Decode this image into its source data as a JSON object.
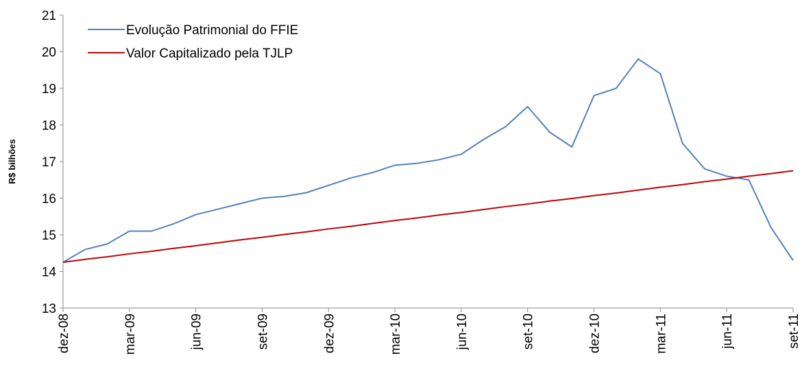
{
  "chart_data": {
    "type": "line",
    "y_label": "R$ bilhões",
    "categories": [
      "dez-08",
      null,
      null,
      "mar-09",
      null,
      null,
      "jun-09",
      null,
      null,
      "set-09",
      null,
      null,
      "dez-09",
      null,
      null,
      "mar-10",
      null,
      null,
      "jun-10",
      null,
      null,
      "set-10",
      null,
      null,
      "dez-10",
      null,
      null,
      "mar-11",
      null,
      null,
      "jun-11",
      null,
      null,
      "set-11"
    ],
    "series": [
      {
        "name": "Evolução Patrimonial do FFIE",
        "color": "#4f81bd",
        "values": [
          14.25,
          14.6,
          14.75,
          15.1,
          15.1,
          15.3,
          15.55,
          15.7,
          15.85,
          16.0,
          16.05,
          16.15,
          16.35,
          16.55,
          16.7,
          16.9,
          16.95,
          17.05,
          17.2,
          17.6,
          17.95,
          18.5,
          17.8,
          17.4,
          18.8,
          19.0,
          19.8,
          19.4,
          17.5,
          16.8,
          16.6,
          16.5,
          15.2,
          14.3
        ]
      },
      {
        "name": "Valor Capitalizado pela TJLP",
        "color": "#c00000",
        "values": [
          14.25,
          14.33,
          14.4,
          14.48,
          14.55,
          14.63,
          14.7,
          14.78,
          14.86,
          14.93,
          15.01,
          15.08,
          15.16,
          15.23,
          15.31,
          15.39,
          15.46,
          15.54,
          15.61,
          15.69,
          15.77,
          15.84,
          15.92,
          15.99,
          16.07,
          16.14,
          16.22,
          16.3,
          16.37,
          16.45,
          16.52,
          16.6,
          16.67,
          16.75
        ]
      }
    ],
    "ylim": [
      13,
      21
    ],
    "yticks": [
      13,
      14,
      15,
      16,
      17,
      18,
      19,
      20,
      21
    ],
    "grid": false
  }
}
